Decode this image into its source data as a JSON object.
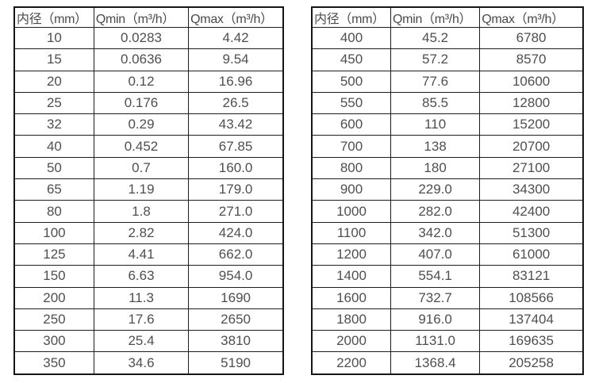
{
  "page": {
    "background": "#ffffff",
    "text_color": "#4d4d4d",
    "border_color": "#1d1d1d"
  },
  "tables": [
    {
      "name": "flow-range-table-small-diameters",
      "headers": [
        "内径（mm）",
        "Qmin（m³/h）",
        "Qmax（m³/h）"
      ],
      "rows": [
        [
          "10",
          "0.0283",
          "4.42"
        ],
        [
          "15",
          "0.0636",
          "9.54"
        ],
        [
          "20",
          "0.12",
          "16.96"
        ],
        [
          "25",
          "0.176",
          "26.5"
        ],
        [
          "32",
          "0.29",
          "43.42"
        ],
        [
          "40",
          "0.452",
          "67.85"
        ],
        [
          "50",
          "0.7",
          "160.0"
        ],
        [
          "65",
          "1.19",
          "179.0"
        ],
        [
          "80",
          "1.8",
          "271.0"
        ],
        [
          "100",
          "2.82",
          "424.0"
        ],
        [
          "125",
          "4.41",
          "662.0"
        ],
        [
          "150",
          "6.63",
          "954.0"
        ],
        [
          "200",
          "11.3",
          "1690"
        ],
        [
          "250",
          "17.6",
          "2650"
        ],
        [
          "300",
          "25.4",
          "3810"
        ],
        [
          "350",
          "34.6",
          "5190"
        ]
      ]
    },
    {
      "name": "flow-range-table-large-diameters",
      "headers": [
        "内径（mm）",
        "Qmin（m³/h）",
        "Qmax（m³/h）"
      ],
      "rows": [
        [
          "400",
          "45.2",
          "6780"
        ],
        [
          "450",
          "57.2",
          "8570"
        ],
        [
          "500",
          "77.6",
          "10600"
        ],
        [
          "550",
          "85.5",
          "12800"
        ],
        [
          "600",
          "110",
          "15200"
        ],
        [
          "700",
          "138",
          "20700"
        ],
        [
          "800",
          "180",
          "27100"
        ],
        [
          "900",
          "229.0",
          "34300"
        ],
        [
          "1000",
          "282.0",
          "42400"
        ],
        [
          "1100",
          "342.0",
          "51300"
        ],
        [
          "1200",
          "407.0",
          "61000"
        ],
        [
          "1400",
          "554.1",
          "83121"
        ],
        [
          "1600",
          "732.7",
          "108566"
        ],
        [
          "1800",
          "916.0",
          "137404"
        ],
        [
          "2000",
          "1131.0",
          "169635"
        ],
        [
          "2200",
          "1368.4",
          "205258"
        ]
      ]
    }
  ]
}
